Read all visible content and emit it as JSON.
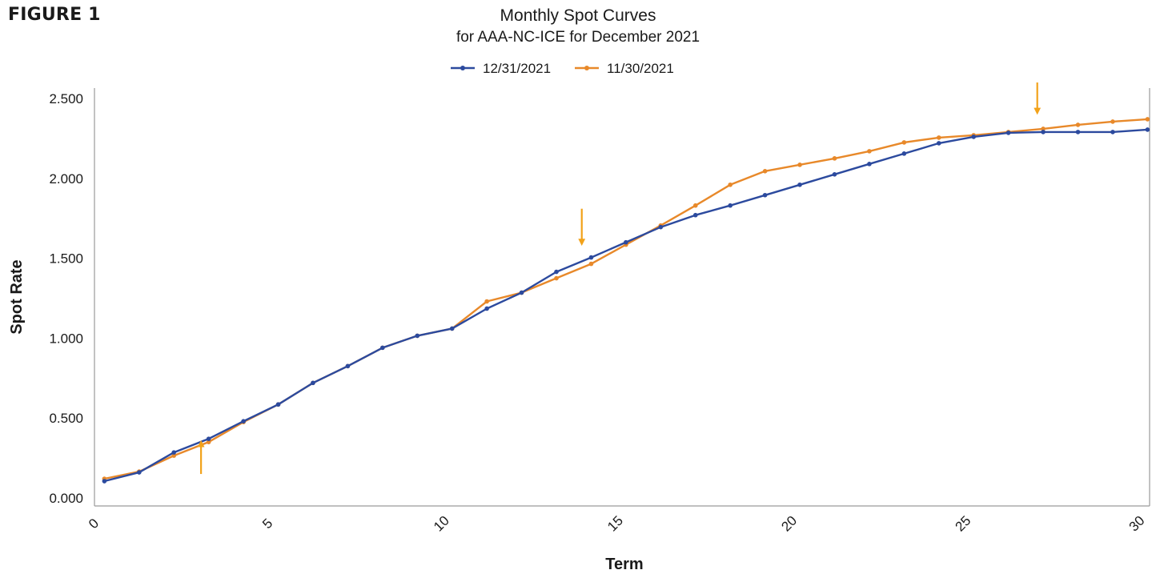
{
  "figure_label": "FIGURE 1",
  "chart_data": {
    "type": "line",
    "title": "Monthly Spot Curves",
    "subtitle": "for AAA-NC-ICE for December 2021",
    "xlabel": "Term",
    "ylabel": "Spot Rate",
    "xlim": [
      0,
      30
    ],
    "ylim": [
      0,
      2.6
    ],
    "x_ticks": [
      "0",
      "5",
      "10",
      "15",
      "20",
      "25",
      "30"
    ],
    "x_tick_values": [
      0,
      5,
      10,
      15,
      20,
      25,
      30
    ],
    "y_ticks": [
      "0.000",
      "0.500",
      "1.000",
      "1.500",
      "2.000",
      "2.500"
    ],
    "y_tick_values": [
      0,
      0.5,
      1.0,
      1.5,
      2.0,
      2.5
    ],
    "grid": false,
    "legend_position": "top-center",
    "x": [
      0.17,
      1.17,
      2.17,
      3.17,
      4.17,
      5.17,
      6.17,
      7.17,
      8.17,
      9.17,
      10.17,
      11.17,
      12.17,
      13.17,
      14.17,
      15.17,
      16.17,
      17.17,
      18.17,
      19.17,
      20.17,
      21.17,
      22.17,
      23.17,
      24.17,
      25.17,
      26.17,
      27.17,
      28.17,
      29.17,
      30.17
    ],
    "series": [
      {
        "name": "12/31/2021",
        "color": "#2c4a9e",
        "values": [
          0.105,
          0.16,
          0.285,
          0.37,
          0.48,
          0.585,
          0.72,
          0.825,
          0.94,
          1.015,
          1.06,
          1.185,
          1.285,
          1.415,
          1.505,
          1.6,
          1.695,
          1.77,
          1.83,
          1.895,
          1.96,
          2.025,
          2.09,
          2.155,
          2.22,
          2.26,
          2.285,
          2.29,
          2.29,
          2.29,
          2.305
        ]
      },
      {
        "name": "11/30/2021",
        "color": "#e8892a",
        "values": [
          0.12,
          0.165,
          0.265,
          0.35,
          0.475,
          0.585,
          0.72,
          0.825,
          0.94,
          1.015,
          1.06,
          1.23,
          1.285,
          1.375,
          1.465,
          1.585,
          1.705,
          1.83,
          1.96,
          2.045,
          2.085,
          2.125,
          2.17,
          2.225,
          2.255,
          2.27,
          2.29,
          2.31,
          2.335,
          2.355,
          2.37
        ]
      }
    ],
    "annotations": [
      {
        "type": "arrow-up",
        "x": 2.95,
        "y_from": 0.15,
        "y_to": 0.34,
        "color": "#f2a21a"
      },
      {
        "type": "arrow-down",
        "x": 13.9,
        "y_from": 1.81,
        "y_to": 1.6,
        "color": "#f2a21a"
      },
      {
        "type": "arrow-down",
        "x": 27.0,
        "y_from": 2.6,
        "y_to": 2.42,
        "color": "#f2a21a"
      }
    ]
  }
}
